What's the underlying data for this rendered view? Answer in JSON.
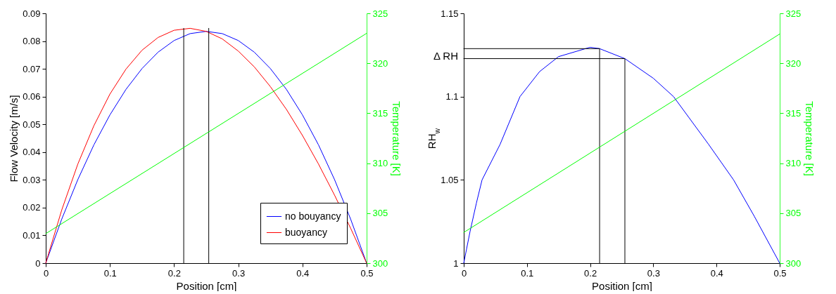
{
  "chart_data": [
    {
      "type": "line",
      "xlabel": "Position [cm]",
      "ylabel": "Flow Velocity [m/s]",
      "y2label": "Temperature [K]",
      "x": [
        0,
        0.025,
        0.05,
        0.075,
        0.1,
        0.125,
        0.15,
        0.175,
        0.2,
        0.225,
        0.25,
        0.275,
        0.3,
        0.325,
        0.35,
        0.375,
        0.4,
        0.425,
        0.45,
        0.475,
        0.5
      ],
      "xlim": [
        0,
        0.5
      ],
      "xticks": [
        0,
        0.1,
        0.2,
        0.3,
        0.4,
        0.5
      ],
      "ylim": [
        0,
        0.09
      ],
      "yticks": [
        0,
        0.01,
        0.02,
        0.03,
        0.04,
        0.05,
        0.06,
        0.07,
        0.08,
        0.09
      ],
      "y2lim": [
        300,
        325
      ],
      "y2ticks": [
        300,
        305,
        310,
        315,
        320,
        325
      ],
      "grid": false,
      "legend": "bottom right",
      "series": [
        {
          "name": "no bouyancy",
          "color": "#0000ff",
          "values": [
            0,
            0.0159,
            0.0301,
            0.0426,
            0.0534,
            0.0626,
            0.0701,
            0.076,
            0.0802,
            0.0827,
            0.0835,
            0.0827,
            0.0802,
            0.076,
            0.0701,
            0.0626,
            0.0534,
            0.0426,
            0.0301,
            0.0159,
            0
          ]
        },
        {
          "name": "buoyancy",
          "color": "#ff0000",
          "values": [
            0,
            0.0192,
            0.0357,
            0.0495,
            0.0609,
            0.0699,
            0.0767,
            0.0813,
            0.0839,
            0.0846,
            0.0835,
            0.0808,
            0.0764,
            0.0707,
            0.0636,
            0.0554,
            0.046,
            0.0357,
            0.0245,
            0.0126,
            0
          ]
        },
        {
          "color": "#00ff00",
          "axis": "y2",
          "x": [
            0,
            0.5
          ],
          "values": [
            302.95,
            323
          ]
        },
        {
          "color": "#000000",
          "x": [
            0.215,
            0.215
          ],
          "values": [
            0,
            0.0846
          ]
        },
        {
          "color": "#000000",
          "x": [
            0.254,
            0.254
          ],
          "values": [
            0,
            0.0846
          ]
        }
      ]
    },
    {
      "type": "line",
      "xlabel": "Position [cm]",
      "ylabel": "RH$_{w}$",
      "y2label": "Temperature [K]",
      "xlim": [
        0,
        0.5
      ],
      "xticks": [
        0,
        0.1,
        0.2,
        0.3,
        0.4,
        0.5
      ],
      "ylim": [
        1,
        1.15
      ],
      "yticks": [
        1,
        1.05,
        1.1,
        1.15
      ],
      "y2lim": [
        300,
        325
      ],
      "y2ticks": [
        300,
        305,
        310,
        315,
        320,
        325
      ],
      "grid": false,
      "annotations": [
        "Δ RH"
      ],
      "series": [
        {
          "color": "#0000ff",
          "x": [
            0,
            0.01,
            0.02,
            0.029,
            0.0575,
            0.089,
            0.12,
            0.15,
            0.2,
            0.215,
            0.255,
            0.3,
            0.332,
            0.3875,
            0.427,
            0.46,
            0.5
          ],
          "values": [
            1,
            1.019,
            1.036,
            1.05,
            1.0713,
            1.1,
            1.115,
            1.124,
            1.1296,
            1.1288,
            1.1228,
            1.111,
            1.1,
            1.0713,
            1.05,
            1.028,
            1
          ]
        },
        {
          "color": "#00ff00",
          "axis": "y2",
          "x": [
            0,
            0.5
          ],
          "values": [
            303.07,
            322.93
          ]
        },
        {
          "color": "#000000",
          "x": [
            0,
            0.215,
            0.215
          ],
          "values": [
            1.1288,
            1.1288,
            1
          ]
        },
        {
          "color": "#000000",
          "x": [
            0,
            0.255,
            0.255
          ],
          "values": [
            1.1228,
            1.1228,
            1
          ]
        }
      ]
    }
  ]
}
